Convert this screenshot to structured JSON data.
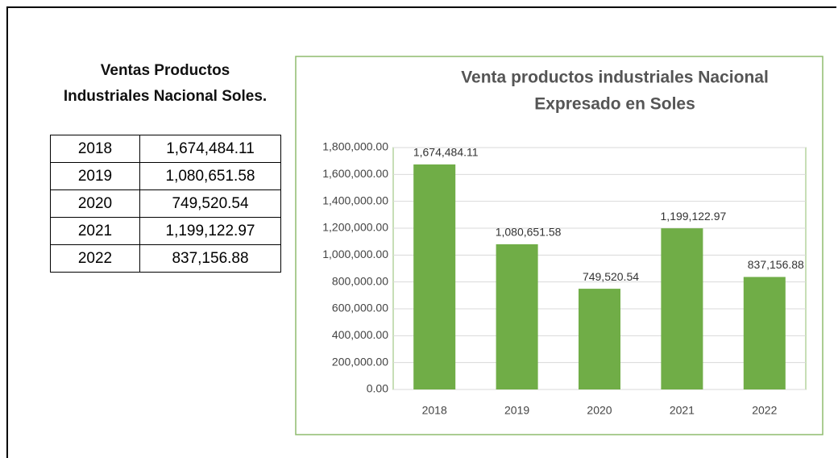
{
  "table": {
    "title_lines": [
      "Ventas Productos",
      "Industriales Nacional Soles."
    ],
    "rows": [
      [
        "2018",
        "1,674,484.11"
      ],
      [
        "2019",
        "1,080,651.58"
      ],
      [
        "2020",
        "749,520.54"
      ],
      [
        "2021",
        "1,199,122.97"
      ],
      [
        "2022",
        "837,156.88"
      ]
    ]
  },
  "chart_data": {
    "type": "bar",
    "title_lines": [
      "Venta productos industriales Nacional",
      "Expresado en Soles"
    ],
    "categories": [
      "2018",
      "2019",
      "2020",
      "2021",
      "2022"
    ],
    "values": [
      1674484.11,
      1080651.58,
      749520.54,
      1199122.97,
      837156.88
    ],
    "value_labels": [
      "1,674,484.11",
      "1,080,651.58",
      "749,520.54",
      "1,199,122.97",
      "837,156.88"
    ],
    "color": "#70ad47",
    "ylim": [
      0,
      1800000
    ],
    "yticks": [
      {
        "value": 0,
        "label": "0.00"
      },
      {
        "value": 200000,
        "label": "200,000.00"
      },
      {
        "value": 400000,
        "label": "400,000.00"
      },
      {
        "value": 600000,
        "label": "600,000.00"
      },
      {
        "value": 800000,
        "label": "800,000.00"
      },
      {
        "value": 1000000,
        "label": "1,000,000.00"
      },
      {
        "value": 1200000,
        "label": "1,200,000.00"
      },
      {
        "value": 1400000,
        "label": "1,400,000.00"
      },
      {
        "value": 1600000,
        "label": "1,600,000.00"
      },
      {
        "value": 1800000,
        "label": "1,800,000.00"
      }
    ],
    "grid": true
  }
}
